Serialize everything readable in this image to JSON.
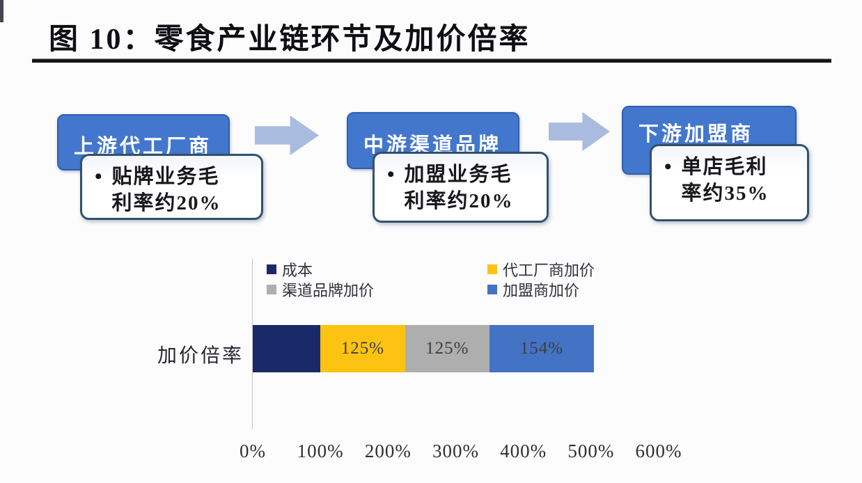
{
  "header": {
    "title": "图 10：零食产业链环节及加价倍率"
  },
  "flow": {
    "arrow_color": "#a9bcdf",
    "stages": [
      {
        "name": "上游代工厂商",
        "bullet": "•",
        "note_lines": [
          "贴牌业务毛",
          "利率约20%"
        ]
      },
      {
        "name": "中游渠道品牌",
        "bullet": "•",
        "note_lines": [
          "加盟业务毛",
          "利率约20%"
        ]
      },
      {
        "name": "下游加盟商",
        "bullet": "•",
        "note_lines": [
          "单店毛利",
          "率约35%"
        ]
      }
    ]
  },
  "chart_data": {
    "type": "bar",
    "orientation": "horizontal-stacked",
    "title": "",
    "categories": [
      "加价倍率"
    ],
    "series": [
      {
        "name": "成本",
        "value": 100,
        "label": "",
        "color": "#1a2a68"
      },
      {
        "name": "代工厂商加价",
        "value": 125,
        "label": "125%",
        "color": "#fcc313"
      },
      {
        "name": "渠道品牌加价",
        "value": 125,
        "label": "125%",
        "color": "#aeaeae"
      },
      {
        "name": "加盟商加价",
        "value": 154,
        "label": "154%",
        "color": "#4473c5"
      }
    ],
    "x_ticks": [
      {
        "value": 0,
        "label": "0%"
      },
      {
        "value": 100,
        "label": "100%"
      },
      {
        "value": 200,
        "label": "200%"
      },
      {
        "value": 300,
        "label": "300%"
      },
      {
        "value": 400,
        "label": "400%"
      },
      {
        "value": 500,
        "label": "500%"
      },
      {
        "value": 600,
        "label": "600%"
      }
    ],
    "xlim": [
      0,
      600
    ],
    "grid": false,
    "legend_position": "top-inside",
    "legend_columns": 2
  }
}
